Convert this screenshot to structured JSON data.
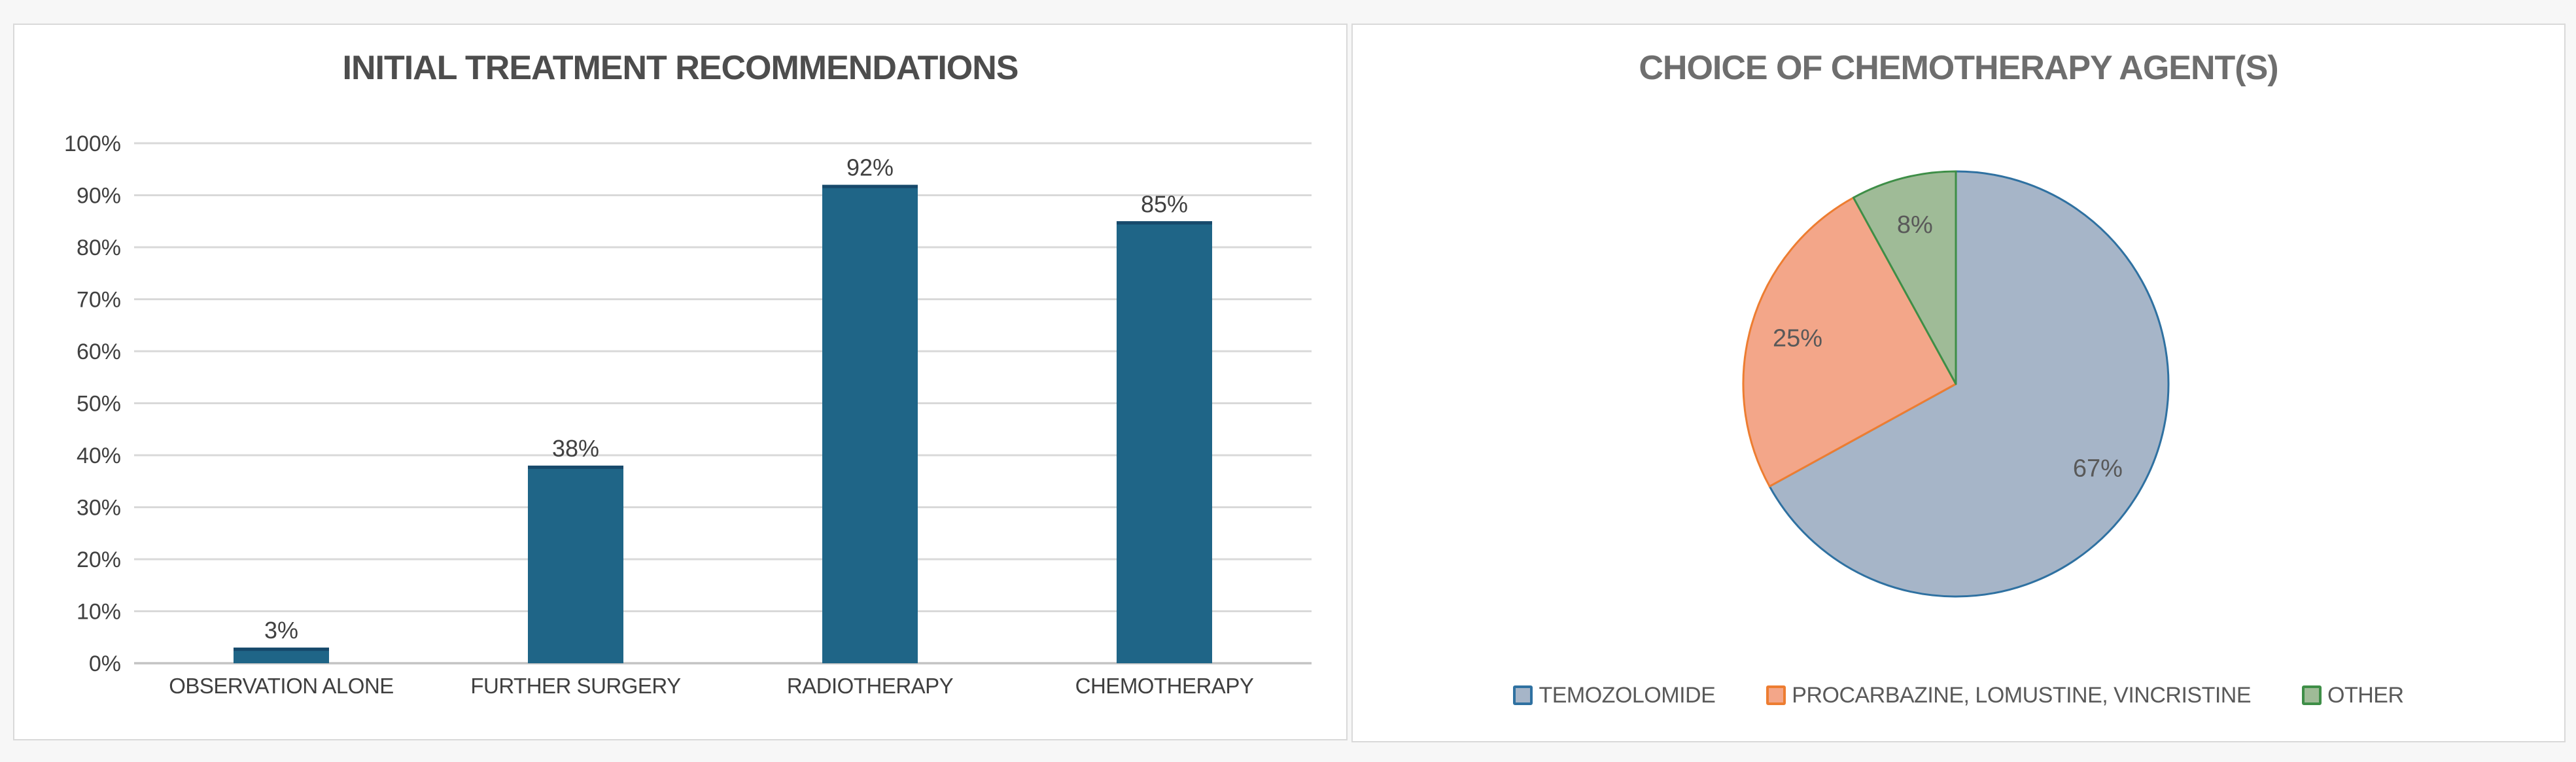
{
  "cards": {
    "bar": {
      "title": "INITIAL TREATMENT RECOMMENDATIONS",
      "title_color": "#4d4d4d"
    },
    "pie": {
      "title": "CHOICE OF CHEMOTHERAPY AGENT(S)",
      "title_color": "#6e6e6e"
    }
  },
  "chart_data": [
    {
      "type": "bar",
      "title": "INITIAL TREATMENT RECOMMENDATIONS",
      "categories": [
        "OBSERVATION ALONE",
        "FURTHER SURGERY",
        "RADIOTHERAPY",
        "CHEMOTHERAPY"
      ],
      "values": [
        3,
        38,
        92,
        85
      ],
      "data_labels": [
        "3%",
        "38%",
        "92%",
        "85%"
      ],
      "xlabel": "",
      "ylabel": "",
      "ylim": [
        0,
        100
      ],
      "y_tick_step": 10,
      "y_tick_labels": [
        "0%",
        "10%",
        "20%",
        "30%",
        "40%",
        "50%",
        "60%",
        "70%",
        "80%",
        "90%",
        "100%"
      ],
      "grid": true,
      "legend_position": "none",
      "bar_color": "#1F6587",
      "bar_cap_color": "#17496B",
      "grid_color": "#d9d9d9",
      "baseline_color": "#c3c3c3",
      "axis_tick_color": "#404040",
      "category_label_color": "#3f3f3f",
      "data_label_color": "#404040"
    },
    {
      "type": "pie",
      "title": "CHOICE OF CHEMOTHERAPY AGENT(S)",
      "start_angle_deg": 0,
      "direction": "clockwise",
      "legend_position": "bottom",
      "data_label_color": "#595959",
      "slices": [
        {
          "label": "TEMOZOLOMIDE",
          "value": 67,
          "data_label": "67%",
          "fill": "#a6b5c8",
          "border": "#2f71a1"
        },
        {
          "label": "PROCARBAZINE, LOMUSTINE, VINCRISTINE",
          "value": 25,
          "data_label": "25%",
          "fill": "#f3a689",
          "border": "#ed7d31"
        },
        {
          "label": "OTHER",
          "value": 8,
          "data_label": "8%",
          "fill": "#9fbb97",
          "border": "#3e8e47"
        }
      ]
    }
  ]
}
